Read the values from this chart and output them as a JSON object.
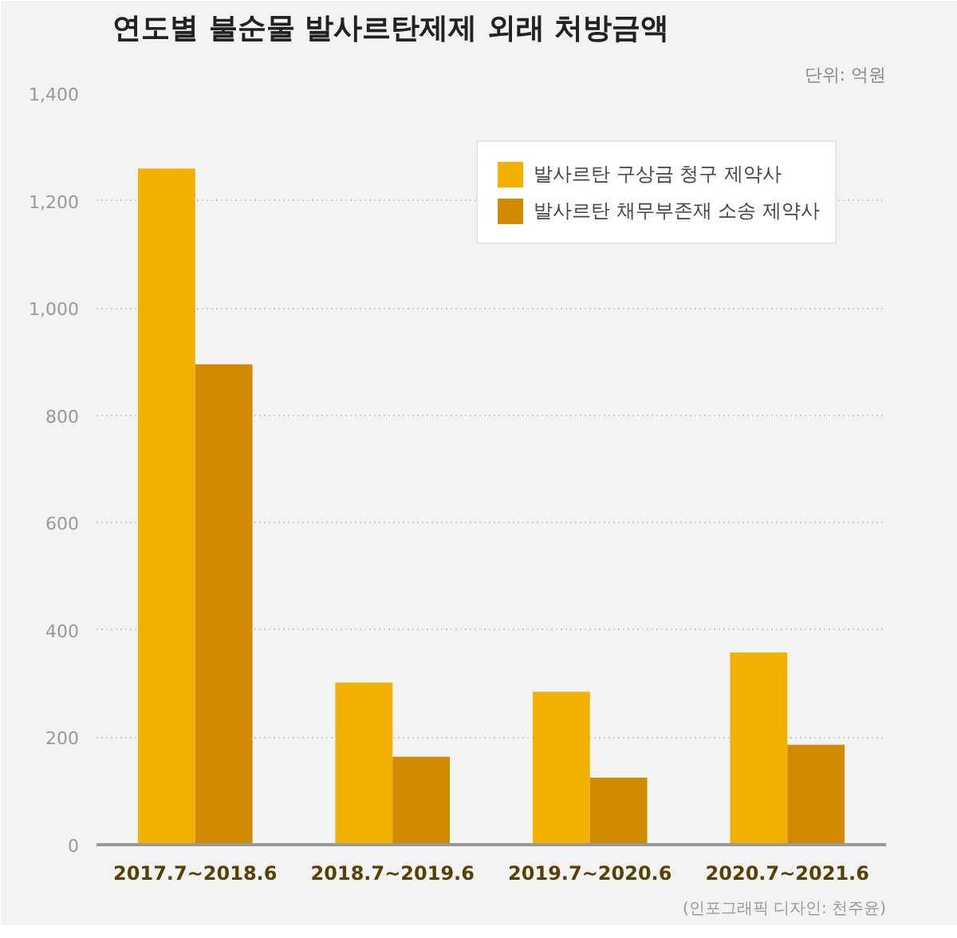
{
  "chart_data": {
    "type": "bar",
    "title": "연도별 불순물 발사르탄제제 외래 처방금액",
    "subtitle": "단위: 억원",
    "categories": [
      "2017.7~2018.6",
      "2018.7~2019.6",
      "2019.7~2020.6",
      "2020.7~2021.6"
    ],
    "series": [
      {
        "name": "발사르탄 구상금 청구 제약사",
        "color": "#f2b100",
        "values": [
          1260,
          302,
          285,
          358
        ]
      },
      {
        "name": "발사르탄 채무부존재 소송 제약사",
        "color": "#d08a00",
        "values": [
          895,
          164,
          125,
          186
        ]
      }
    ],
    "ylim": [
      0,
      1400
    ],
    "yticks": [
      0,
      {
        "value": 200,
        "label": "200"
      },
      {
        "value": 400,
        "label": "400"
      },
      {
        "value": 600,
        "label": "600"
      },
      {
        "value": 800,
        "label": "800"
      },
      {
        "value": 1000,
        "label": "1,000"
      },
      {
        "value": 1200,
        "label": "1,200"
      },
      {
        "value": 1400,
        "label": "1,400"
      }
    ],
    "grid": "y",
    "legend": "top right",
    "annotations": [
      "(인포그래픽 디자인: 천주윤)"
    ]
  }
}
